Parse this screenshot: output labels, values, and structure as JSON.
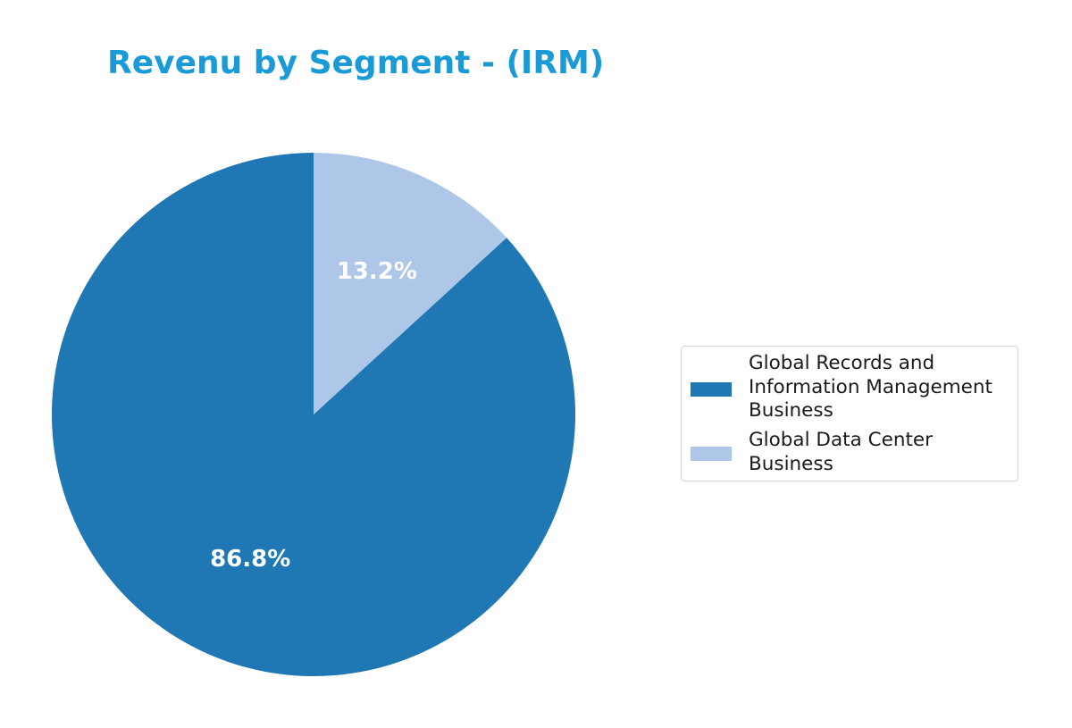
{
  "title": "Revenu by Segment - (IRM)",
  "colors": {
    "title": "#1a9bd7",
    "slice_1": "#1f77b4",
    "slice_2": "#aec7e8"
  },
  "chart_data": {
    "type": "pie",
    "title": "Revenu by Segment - (IRM)",
    "categories": [
      "Global Records and Information Management Business",
      "Global Data Center Business"
    ],
    "values": [
      86.8,
      13.2
    ],
    "labels": [
      "86.8%",
      "13.2%"
    ],
    "colors": [
      "#1f77b4",
      "#aec7e8"
    ],
    "start_angle": 90,
    "direction": "counterclockwise-from-top (slice 2 drawn clockwise from 12 o'clock)",
    "legend_position": "right"
  },
  "legend": {
    "items": [
      {
        "lines": [
          "Global Records and",
          "Information Management",
          "Business"
        ]
      },
      {
        "lines": [
          "Global Data Center",
          "Business"
        ]
      }
    ]
  }
}
